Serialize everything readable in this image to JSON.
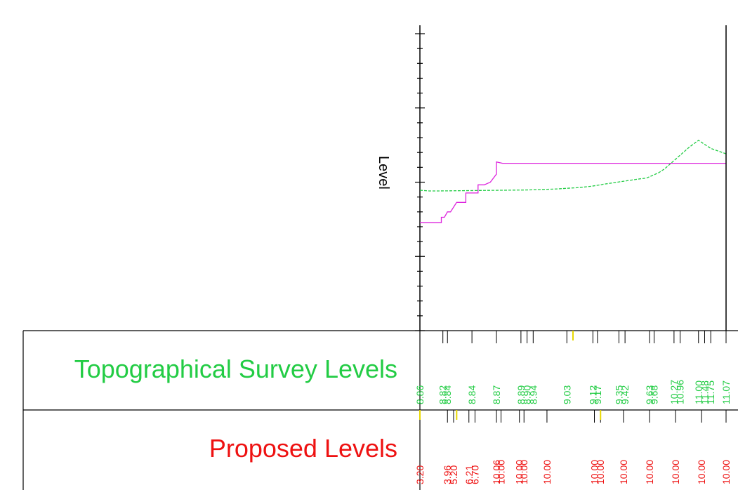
{
  "chart_data": {
    "type": "line",
    "ylabel": "Level",
    "grid": false,
    "xlim": [
      0,
      100
    ],
    "ylim": [
      0,
      22
    ],
    "series": [
      {
        "name": "Topographical Survey Levels",
        "color": "#22cc44",
        "style": "dashed",
        "x": [
          0,
          3,
          6,
          10,
          14,
          18,
          22,
          27,
          31,
          34,
          39,
          45,
          48,
          52,
          56,
          59,
          60,
          63,
          66,
          69,
          72,
          74,
          76,
          78,
          80,
          82,
          84,
          86,
          88,
          91,
          95,
          100
        ],
        "y": [
          10.4,
          10.35,
          10.35,
          10.36,
          10.37,
          10.38,
          10.39,
          10.4,
          10.41,
          10.42,
          10.45,
          10.5,
          10.55,
          10.6,
          10.7,
          10.8,
          10.85,
          10.95,
          11.05,
          11.15,
          11.25,
          11.3,
          11.5,
          11.7,
          12.0,
          12.4,
          12.8,
          13.2,
          13.6,
          14.1,
          13.5,
          13.1
        ]
      },
      {
        "name": "Proposed Levels",
        "color": "#dd22dd",
        "style": "solid",
        "x": [
          0,
          7,
          7,
          8,
          9,
          10,
          12,
          15,
          15,
          17,
          19,
          19,
          21,
          23,
          25,
          25,
          27,
          100
        ],
        "y": [
          8.0,
          8.0,
          8.4,
          8.4,
          8.8,
          8.8,
          9.5,
          9.5,
          10.2,
          10.2,
          10.2,
          10.8,
          10.8,
          11.0,
          11.6,
          12.5,
          12.4,
          12.4
        ]
      }
    ],
    "table_rows": [
      {
        "title": "Topographical Survey Levels",
        "color": "#22cc44",
        "labels": [
          {
            "x": 0,
            "text": "8.86"
          },
          {
            "x": 7.5,
            "text": "8.82"
          },
          {
            "x": 9,
            "text": "8.84"
          },
          {
            "x": 17,
            "text": "8.84"
          },
          {
            "x": 25,
            "text": "8.87"
          },
          {
            "x": 33,
            "text": "8.89"
          },
          {
            "x": 35,
            "text": "8.90"
          },
          {
            "x": 37,
            "text": "8.94"
          },
          {
            "x": 48,
            "text": "9.03"
          },
          {
            "x": 56.5,
            "text": "9.12"
          },
          {
            "x": 58,
            "text": "9.17"
          },
          {
            "x": 65,
            "text": "9.35"
          },
          {
            "x": 67,
            "text": "9.42"
          },
          {
            "x": 75,
            "text": "9.63"
          },
          {
            "x": 76.5,
            "text": "9.68"
          },
          {
            "x": 83,
            "text": "10.27"
          },
          {
            "x": 85,
            "text": "10.96"
          },
          {
            "x": 91,
            "text": "11.00"
          },
          {
            "x": 93,
            "text": "11.48"
          },
          {
            "x": 95,
            "text": "11.75"
          },
          {
            "x": 100,
            "text": "11.07"
          }
        ]
      },
      {
        "title": "Proposed Levels",
        "color": "#ee1111",
        "labels": [
          {
            "x": 0,
            "text": "3.20"
          },
          {
            "x": 9,
            "text": "3.96"
          },
          {
            "x": 11,
            "text": "5.20"
          },
          {
            "x": 16,
            "text": "6.21"
          },
          {
            "x": 18,
            "text": "6.70"
          },
          {
            "x": 25,
            "text": "10.06"
          },
          {
            "x": 26.5,
            "text": "10.00"
          },
          {
            "x": 32.5,
            "text": "10.00"
          },
          {
            "x": 34,
            "text": "10.00"
          },
          {
            "x": 41.5,
            "text": "10.00"
          },
          {
            "x": 57,
            "text": "10.00"
          },
          {
            "x": 59,
            "text": "10.00"
          },
          {
            "x": 66.5,
            "text": "10.00"
          },
          {
            "x": 75,
            "text": "10.00"
          },
          {
            "x": 83.5,
            "text": "10.00"
          },
          {
            "x": 92,
            "text": "10.00"
          },
          {
            "x": 100,
            "text": "10.00"
          }
        ]
      }
    ]
  }
}
